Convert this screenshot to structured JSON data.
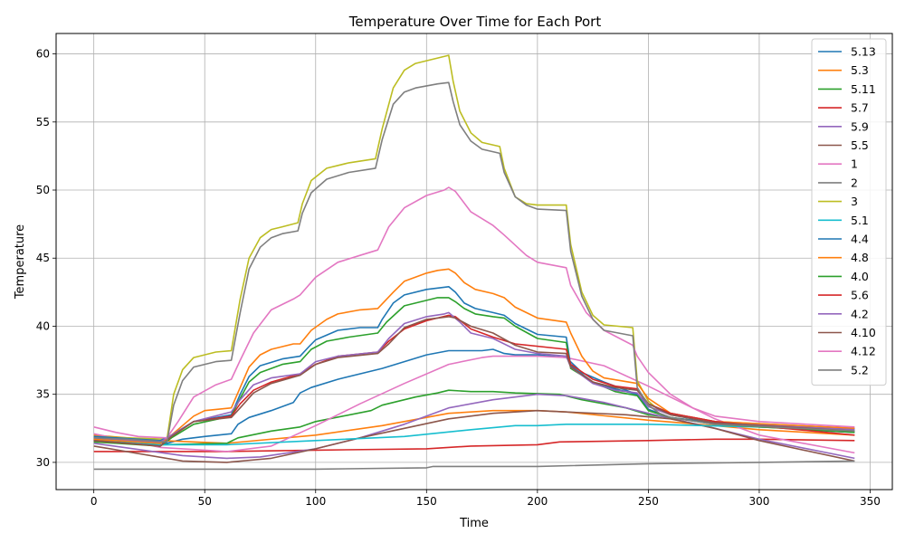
{
  "chart_data": {
    "type": "line",
    "title": "Temperature Over Time for Each Port",
    "xlabel": "Time",
    "ylabel": "Temperature",
    "xlim": [
      -17,
      360
    ],
    "ylim": [
      28,
      61.5
    ],
    "xticks": [
      0,
      50,
      100,
      150,
      200,
      250,
      300,
      350
    ],
    "yticks": [
      30,
      35,
      40,
      45,
      50,
      55,
      60
    ],
    "grid": true,
    "legend_position": "top-right",
    "series": [
      {
        "name": "5.13",
        "color": "#1f77b4",
        "x": [
          0,
          33,
          40,
          50,
          62,
          65,
          70,
          80,
          90,
          93,
          98,
          110,
          130,
          140,
          150,
          160,
          175,
          180,
          185,
          190,
          200,
          213,
          220,
          230,
          240,
          245,
          250,
          260,
          280,
          300,
          320,
          343
        ],
        "y": [
          31.8,
          31.4,
          31.7,
          31.9,
          32.1,
          32.8,
          33.3,
          33.8,
          34.4,
          35.1,
          35.5,
          36.1,
          36.9,
          37.4,
          37.9,
          38.2,
          38.2,
          38.3,
          38.0,
          37.9,
          37.9,
          37.7,
          36.6,
          35.9,
          35.3,
          35.0,
          34.3,
          33.6,
          33.0,
          32.7,
          32.4,
          32.2
        ]
      },
      {
        "name": "5.3",
        "color": "#ff7f0e",
        "x": [
          0,
          30,
          60,
          100,
          130,
          160,
          180,
          200,
          213,
          250,
          280,
          300,
          343
        ],
        "y": [
          32.0,
          31.6,
          31.4,
          32.0,
          32.7,
          33.6,
          33.8,
          33.8,
          33.7,
          33.1,
          32.7,
          32.4,
          32.0
        ]
      },
      {
        "name": "5.11",
        "color": "#2ca02c",
        "x": [
          0,
          30,
          60,
          65,
          80,
          93,
          100,
          125,
          130,
          145,
          155,
          160,
          170,
          180,
          190,
          210,
          220,
          240,
          250,
          270,
          300,
          343
        ],
        "y": [
          31.7,
          31.3,
          31.4,
          31.8,
          32.3,
          32.6,
          33.0,
          33.8,
          34.2,
          34.8,
          35.1,
          35.3,
          35.2,
          35.2,
          35.1,
          35.0,
          34.6,
          34.0,
          33.5,
          33.1,
          32.6,
          32.3
        ]
      },
      {
        "name": "5.7",
        "color": "#d62728",
        "x": [
          0,
          60,
          100,
          150,
          170,
          200,
          210,
          250,
          280,
          300,
          343
        ],
        "y": [
          30.8,
          30.8,
          30.9,
          31.0,
          31.2,
          31.3,
          31.5,
          31.6,
          31.7,
          31.7,
          31.6
        ]
      },
      {
        "name": "5.9",
        "color": "#9467bd",
        "x": [
          0,
          40,
          60,
          75,
          100,
          120,
          140,
          160,
          180,
          200,
          213,
          230,
          250,
          280,
          300,
          343
        ],
        "y": [
          31.4,
          30.5,
          30.3,
          30.4,
          31.0,
          31.8,
          32.8,
          34.0,
          34.6,
          35.0,
          34.9,
          34.4,
          33.6,
          32.5,
          31.7,
          30.3
        ]
      },
      {
        "name": "5.5",
        "color": "#8c564b",
        "x": [
          0,
          40,
          60,
          80,
          100,
          120,
          140,
          160,
          180,
          200,
          213,
          240,
          260,
          280,
          300,
          343
        ],
        "y": [
          31.2,
          30.1,
          30.0,
          30.3,
          31.0,
          31.8,
          32.5,
          33.2,
          33.6,
          33.8,
          33.7,
          33.5,
          33.2,
          32.5,
          31.6,
          30.1
        ]
      },
      {
        "name": "1",
        "color": "#e377c2",
        "x": [
          0,
          30,
          60,
          80,
          100,
          120,
          140,
          160,
          175,
          180,
          200,
          213,
          230,
          250,
          280,
          300,
          343
        ],
        "y": [
          32.1,
          31.1,
          30.8,
          31.2,
          32.7,
          34.3,
          35.8,
          37.2,
          37.7,
          37.8,
          37.8,
          37.7,
          37.1,
          35.6,
          33.2,
          32.0,
          30.7
        ]
      },
      {
        "name": "2",
        "color": "#7f7f7f",
        "x": [
          0,
          30,
          60,
          100,
          150,
          153,
          200,
          250,
          300,
          343
        ],
        "y": [
          29.5,
          29.5,
          29.5,
          29.5,
          29.6,
          29.7,
          29.7,
          29.9,
          30.0,
          30.1
        ]
      },
      {
        "name": "3",
        "color": "#bcbd22",
        "x": [
          0,
          15,
          33,
          36,
          40,
          45,
          55,
          62,
          66,
          70,
          75,
          80,
          85,
          92,
          94,
          98,
          105,
          115,
          127,
          130,
          135,
          140,
          145,
          155,
          160,
          162,
          165,
          170,
          175,
          183,
          185,
          190,
          195,
          200,
          213,
          215,
          220,
          225,
          230,
          243,
          245,
          250,
          255,
          260,
          280,
          343
        ],
        "y": [
          31.9,
          31.8,
          31.7,
          35.0,
          36.8,
          37.7,
          38.1,
          38.2,
          42.0,
          45.0,
          46.5,
          47.1,
          47.3,
          47.6,
          49.0,
          50.7,
          51.6,
          52.0,
          52.3,
          54.5,
          57.5,
          58.8,
          59.3,
          59.7,
          59.9,
          58.0,
          55.8,
          54.2,
          53.5,
          53.2,
          51.6,
          49.5,
          49.0,
          48.9,
          48.9,
          46.0,
          42.5,
          40.8,
          40.1,
          39.9,
          36.0,
          34.5,
          33.8,
          33.5,
          33.0,
          32.5
        ]
      },
      {
        "name": "5.1",
        "color": "#17becf",
        "x": [
          0,
          30,
          60,
          100,
          140,
          170,
          190,
          200,
          213,
          250,
          300,
          343
        ],
        "y": [
          31.6,
          31.3,
          31.3,
          31.6,
          31.9,
          32.4,
          32.7,
          32.7,
          32.8,
          32.8,
          32.6,
          32.4
        ]
      },
      {
        "name": "4.4",
        "color": "#1f77b4",
        "x": [
          0,
          30,
          35,
          45,
          62,
          66,
          70,
          75,
          85,
          93,
          97,
          100,
          110,
          120,
          128,
          130,
          135,
          140,
          150,
          155,
          160,
          163,
          167,
          172,
          180,
          185,
          190,
          200,
          213,
          215,
          225,
          230,
          240,
          245,
          250,
          260,
          280,
          343
        ],
        "y": [
          31.9,
          31.6,
          32.0,
          33.0,
          33.5,
          35.0,
          36.3,
          37.1,
          37.6,
          37.8,
          38.5,
          39.0,
          39.7,
          39.9,
          39.9,
          40.5,
          41.7,
          42.3,
          42.7,
          42.8,
          42.9,
          42.5,
          41.7,
          41.3,
          41.0,
          40.8,
          40.2,
          39.4,
          39.2,
          37.1,
          35.9,
          35.6,
          35.2,
          35.0,
          33.9,
          33.3,
          32.9,
          32.5
        ]
      },
      {
        "name": "4.8",
        "color": "#ff7f0e",
        "x": [
          0,
          30,
          35,
          45,
          50,
          62,
          66,
          70,
          75,
          80,
          85,
          90,
          93,
          98,
          105,
          110,
          120,
          128,
          135,
          140,
          150,
          155,
          160,
          163,
          167,
          172,
          180,
          185,
          190,
          200,
          213,
          215,
          220,
          225,
          230,
          245,
          250,
          260,
          280,
          343
        ],
        "y": [
          31.7,
          31.4,
          32.0,
          33.4,
          33.8,
          34.0,
          35.5,
          37.0,
          37.9,
          38.3,
          38.5,
          38.7,
          38.7,
          39.7,
          40.5,
          40.9,
          41.2,
          41.3,
          42.5,
          43.3,
          43.9,
          44.1,
          44.2,
          43.9,
          43.2,
          42.7,
          42.4,
          42.1,
          41.4,
          40.6,
          40.3,
          39.5,
          37.8,
          36.7,
          36.2,
          35.8,
          34.7,
          33.6,
          33.0,
          32.5
        ]
      },
      {
        "name": "4.0",
        "color": "#2ca02c",
        "x": [
          0,
          30,
          35,
          45,
          62,
          66,
          70,
          75,
          85,
          93,
          98,
          105,
          115,
          128,
          132,
          140,
          150,
          155,
          160,
          163,
          167,
          172,
          180,
          185,
          190,
          200,
          213,
          215,
          225,
          235,
          245,
          250,
          260,
          280,
          343
        ],
        "y": [
          31.5,
          31.2,
          31.8,
          32.8,
          33.4,
          34.7,
          35.9,
          36.6,
          37.2,
          37.4,
          38.3,
          38.9,
          39.2,
          39.5,
          40.3,
          41.5,
          41.9,
          42.1,
          42.1,
          41.8,
          41.3,
          40.9,
          40.7,
          40.6,
          40.0,
          39.1,
          38.8,
          36.9,
          35.9,
          35.2,
          34.9,
          33.8,
          33.3,
          32.8,
          32.2
        ]
      },
      {
        "name": "5.6",
        "color": "#d62728",
        "x": [
          0,
          30,
          35,
          45,
          62,
          66,
          72,
          80,
          93,
          100,
          110,
          128,
          133,
          140,
          150,
          160,
          163,
          170,
          180,
          190,
          213,
          215,
          225,
          235,
          245,
          250,
          260,
          280,
          343
        ],
        "y": [
          31.6,
          31.2,
          31.9,
          33.0,
          33.4,
          34.3,
          35.3,
          35.9,
          36.5,
          37.2,
          37.8,
          38.1,
          38.9,
          39.8,
          40.4,
          40.8,
          40.7,
          39.8,
          39.2,
          38.7,
          38.3,
          37.2,
          36.1,
          35.6,
          35.4,
          34.3,
          33.6,
          33.0,
          32.0
        ]
      },
      {
        "name": "4.2",
        "color": "#9467bd",
        "x": [
          0,
          30,
          35,
          45,
          62,
          66,
          72,
          80,
          93,
          100,
          110,
          128,
          133,
          140,
          150,
          158,
          160,
          165,
          170,
          180,
          190,
          200,
          213,
          215,
          225,
          235,
          245,
          250,
          260,
          280,
          343
        ],
        "y": [
          31.8,
          31.5,
          32.0,
          33.0,
          33.7,
          34.6,
          35.7,
          36.2,
          36.5,
          37.4,
          37.8,
          38.1,
          39.1,
          40.2,
          40.7,
          40.9,
          41.0,
          40.3,
          39.5,
          39.1,
          38.3,
          38.0,
          37.8,
          37.0,
          35.8,
          35.3,
          35.1,
          34.1,
          33.5,
          32.9,
          32.4
        ]
      },
      {
        "name": "4.10",
        "color": "#8c564b",
        "x": [
          0,
          30,
          35,
          45,
          62,
          66,
          72,
          80,
          93,
          100,
          110,
          128,
          133,
          140,
          150,
          160,
          163,
          170,
          180,
          190,
          200,
          213,
          215,
          225,
          235,
          245,
          250,
          260,
          280,
          343
        ],
        "y": [
          31.6,
          31.2,
          31.9,
          33.0,
          33.3,
          34.0,
          35.1,
          35.8,
          36.4,
          37.2,
          37.7,
          38.0,
          38.7,
          39.9,
          40.5,
          40.7,
          40.6,
          40.0,
          39.5,
          38.6,
          38.1,
          38.0,
          37.0,
          35.9,
          35.5,
          35.3,
          34.3,
          33.5,
          32.9,
          32.3
        ]
      },
      {
        "name": "4.12",
        "color": "#e377c2",
        "x": [
          0,
          10,
          20,
          33,
          38,
          45,
          55,
          62,
          66,
          72,
          80,
          90,
          93,
          100,
          110,
          120,
          128,
          133,
          140,
          150,
          158,
          160,
          163,
          170,
          180,
          185,
          195,
          200,
          213,
          215,
          222,
          230,
          243,
          245,
          250,
          260,
          270,
          280,
          300,
          343
        ],
        "y": [
          32.6,
          32.2,
          31.9,
          31.8,
          33.0,
          34.8,
          35.7,
          36.1,
          37.5,
          39.5,
          41.2,
          42.0,
          42.3,
          43.6,
          44.7,
          45.2,
          45.6,
          47.3,
          48.7,
          49.6,
          50.0,
          50.2,
          49.9,
          48.4,
          47.4,
          46.7,
          45.2,
          44.7,
          44.3,
          43.0,
          41.0,
          39.7,
          38.6,
          37.8,
          36.6,
          35.0,
          34.0,
          33.4,
          33.0,
          32.6
        ]
      },
      {
        "name": "5.2",
        "color": "#7f7f7f",
        "x": [
          0,
          15,
          33,
          36,
          40,
          45,
          55,
          62,
          66,
          70,
          75,
          80,
          85,
          92,
          94,
          98,
          105,
          115,
          127,
          130,
          135,
          140,
          145,
          155,
          160,
          162,
          165,
          170,
          175,
          183,
          185,
          190,
          195,
          200,
          213,
          215,
          220,
          225,
          230,
          243,
          245,
          250,
          255,
          260,
          280,
          343
        ],
        "y": [
          31.8,
          31.7,
          31.5,
          34.2,
          36.0,
          37.0,
          37.4,
          37.5,
          41.0,
          44.2,
          45.8,
          46.5,
          46.8,
          47.0,
          48.3,
          49.8,
          50.8,
          51.3,
          51.6,
          53.7,
          56.3,
          57.2,
          57.5,
          57.8,
          57.9,
          56.5,
          54.8,
          53.6,
          53.0,
          52.7,
          51.3,
          49.5,
          48.9,
          48.6,
          48.5,
          45.5,
          42.2,
          40.5,
          39.7,
          39.3,
          35.5,
          34.2,
          33.6,
          33.3,
          32.8,
          32.3
        ]
      }
    ]
  }
}
